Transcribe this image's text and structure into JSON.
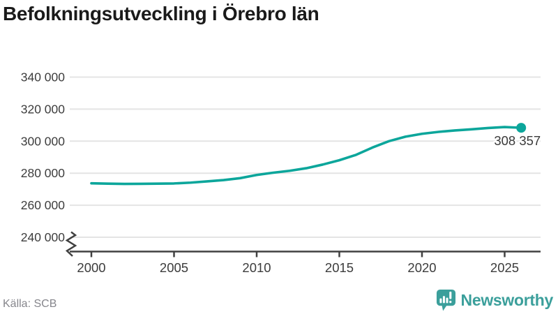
{
  "chart": {
    "title": "Befolkningsutveckling i Örebro län",
    "source": "Källa: SCB",
    "end_label": "308 357"
  },
  "brand": {
    "name": "Newsworthy",
    "color": "#3B9F9B"
  },
  "chart_data": {
    "type": "line",
    "title": "Befolkningsutveckling i Örebro län",
    "xlabel": "",
    "ylabel": "",
    "grid": "horizontal",
    "axis_break_at_bottom": true,
    "xlim": [
      2000,
      2026
    ],
    "ylim": [
      240000,
      340000
    ],
    "x_ticks": [
      {
        "value": 2000,
        "label": "2000"
      },
      {
        "value": 2005,
        "label": "2005"
      },
      {
        "value": 2010,
        "label": "2010"
      },
      {
        "value": 2015,
        "label": "2015"
      },
      {
        "value": 2020,
        "label": "2020"
      },
      {
        "value": 2025,
        "label": "2025"
      }
    ],
    "y_ticks": [
      {
        "value": 340000,
        "label": "340 000"
      },
      {
        "value": 320000,
        "label": "320 000"
      },
      {
        "value": 300000,
        "label": "300 000"
      },
      {
        "value": 280000,
        "label": "280 000"
      },
      {
        "value": 260000,
        "label": "260 000"
      },
      {
        "value": 240000,
        "label": "240 000"
      }
    ],
    "series": [
      {
        "name": "Örebro län",
        "color": "#0CA69B",
        "x": [
          2000,
          2001,
          2002,
          2003,
          2004,
          2005,
          2006,
          2007,
          2008,
          2009,
          2010,
          2011,
          2012,
          2013,
          2014,
          2015,
          2016,
          2017,
          2018,
          2019,
          2020,
          2021,
          2022,
          2023,
          2024,
          2025,
          2026
        ],
        "y": [
          273700,
          273450,
          273300,
          273350,
          273450,
          273600,
          274100,
          274900,
          275700,
          276900,
          278900,
          280300,
          281500,
          283100,
          285400,
          288100,
          291400,
          296000,
          300000,
          302800,
          304600,
          305800,
          306700,
          307400,
          308200,
          308800,
          308357
        ]
      }
    ],
    "end_point_label": "308 357"
  }
}
